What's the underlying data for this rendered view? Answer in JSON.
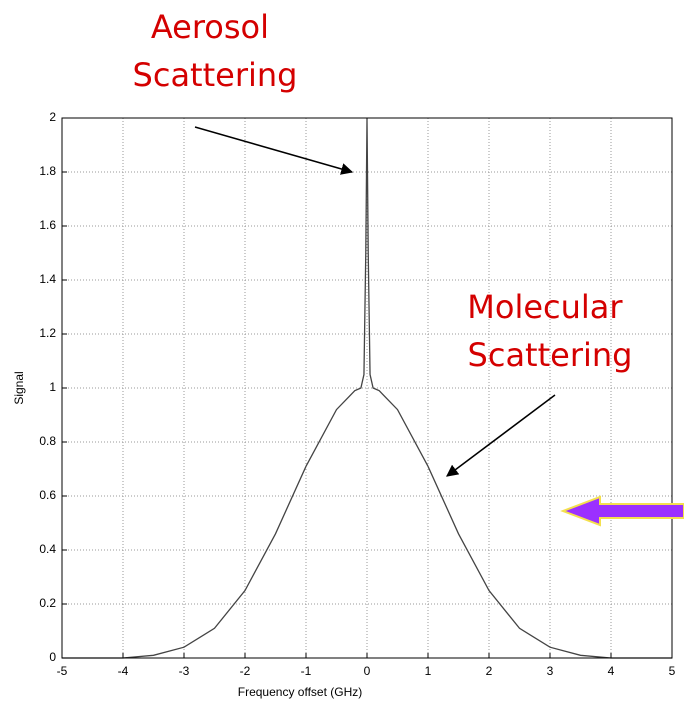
{
  "chart_data": {
    "type": "line",
    "xlabel": "Frequency offset (GHz)",
    "ylabel": "Signal",
    "annotations": [
      [
        "Aerosol",
        "Scattering"
      ],
      [
        "Molecular",
        "Scattering"
      ]
    ],
    "annotation_color": "#d40000",
    "x": [
      -5,
      -4.5,
      -4,
      -3.5,
      -3,
      -2.5,
      -2,
      -1.5,
      -1,
      -0.5,
      -0.2,
      -0.1,
      -0.05,
      -0.02,
      0,
      0.02,
      0.05,
      0.1,
      0.2,
      0.5,
      1,
      1.5,
      2,
      2.5,
      3,
      3.5,
      4,
      4.5,
      5
    ],
    "series": [
      {
        "name": "Signal",
        "color": "#444444",
        "values": [
          0,
          0,
          0,
          0.01,
          0.04,
          0.11,
          0.25,
          0.46,
          0.71,
          0.92,
          0.99,
          1.0,
          1.05,
          1.5,
          2,
          1.5,
          1.05,
          1.0,
          0.99,
          0.92,
          0.71,
          0.46,
          0.25,
          0.11,
          0.04,
          0.01,
          0,
          0,
          0
        ]
      }
    ],
    "xlim": [
      -5,
      5
    ],
    "xticks": [
      -5,
      -4,
      -3,
      -2,
      -1,
      0,
      1,
      2,
      3,
      4,
      5
    ],
    "ylim": [
      0,
      2
    ],
    "yticks": [
      0,
      0.2,
      0.4,
      0.6,
      0.8,
      1,
      1.2,
      1.4,
      1.6,
      1.8,
      2
    ],
    "grid": true
  }
}
